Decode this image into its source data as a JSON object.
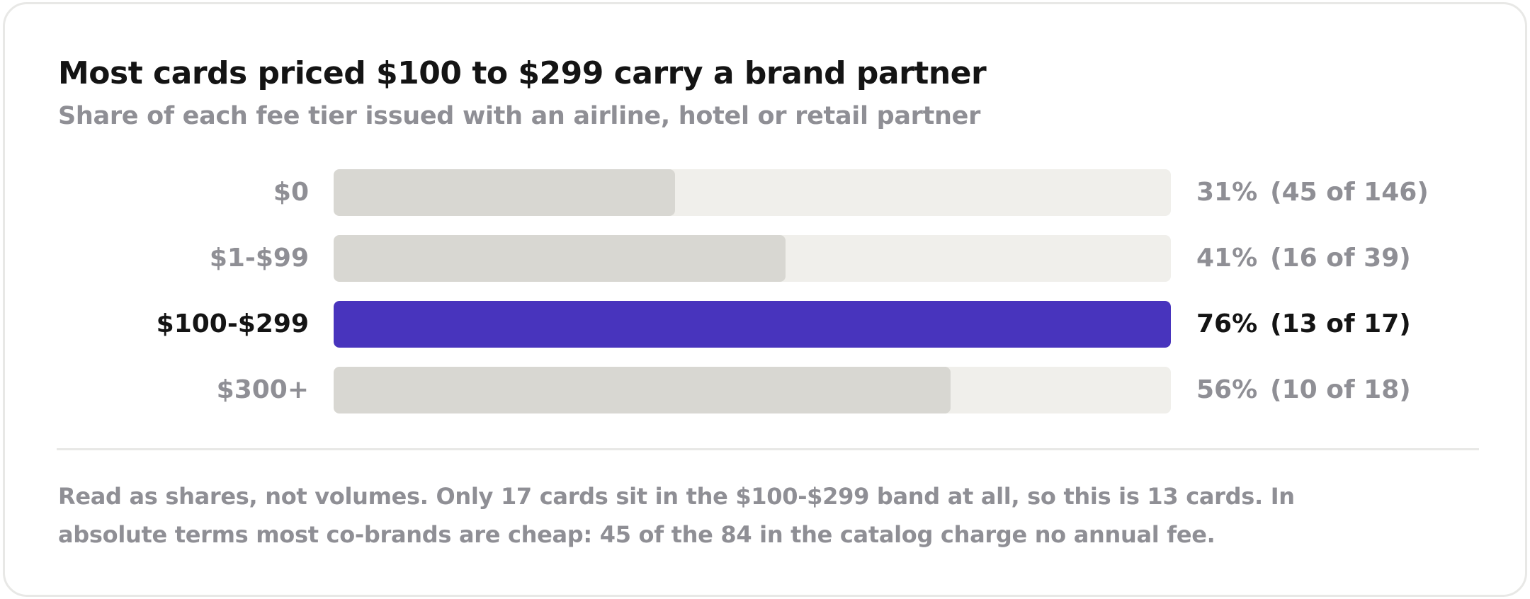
{
  "chart_data": {
    "type": "bar",
    "orientation": "horizontal",
    "title": "Most cards priced $100 to $299 carry a brand partner",
    "subtitle": "Share of each fee tier issued with an airline, hotel or retail partner",
    "categories": [
      "$0",
      "$1-$99",
      "$100-$299",
      "$300+"
    ],
    "values": [
      31,
      41,
      76,
      56
    ],
    "value_labels": [
      "31%",
      "41%",
      "76%",
      "56%"
    ],
    "count_labels": [
      "(45 of 146)",
      "(16 of 39)",
      "(13 of 17)",
      "(10 of 18)"
    ],
    "xlim": [
      0,
      76
    ],
    "highlight_index": 2,
    "grid": false,
    "colors": {
      "bar": "#d8d7d2",
      "track": "#f0efeb",
      "highlight": "#4834bd",
      "muted_text": "#8f8f95",
      "strong_text": "#141414"
    }
  },
  "footer": {
    "note": "Read as shares, not volumes. Only 17 cards sit in the $100-$299 band at all, so this is 13 cards. In absolute terms most co-brands are cheap: 45 of the 84 in the catalog charge no annual fee."
  }
}
